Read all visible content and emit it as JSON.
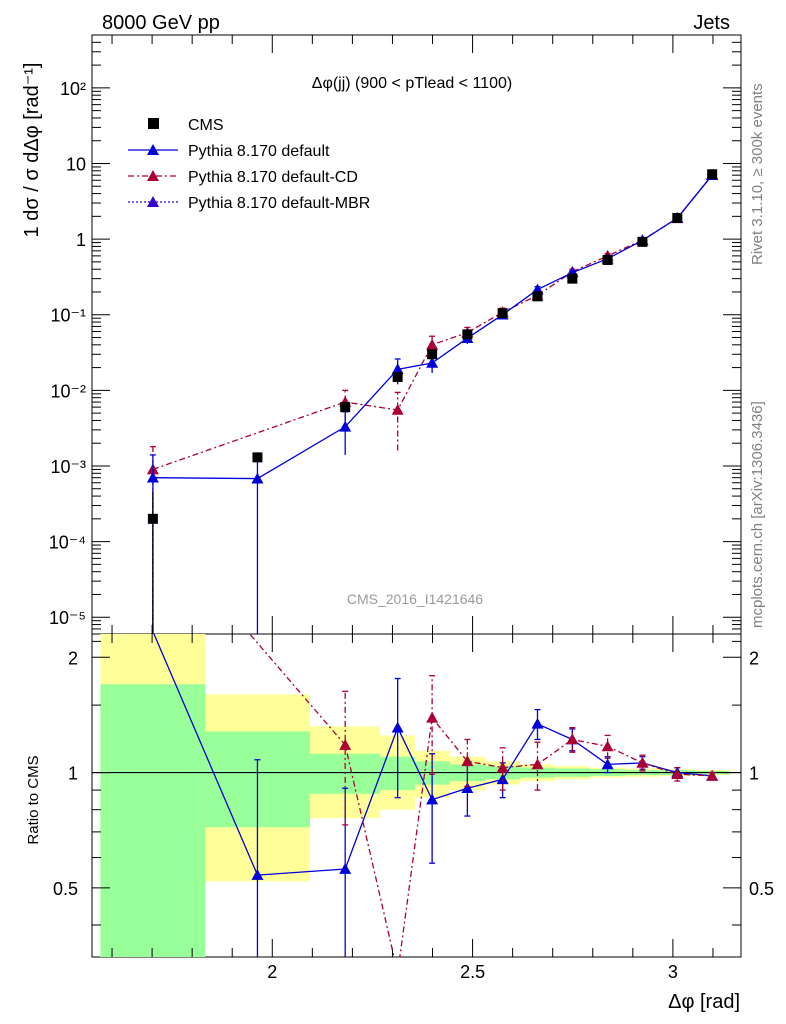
{
  "header": {
    "left": "8000 GeV pp",
    "right": "Jets"
  },
  "side": {
    "rivet": "Rivet 3.1.10, ≥ 300k events",
    "mcplots": "mcplots.cern.ch [arXiv:1306.3436]"
  },
  "watermark": "CMS_2016_I1421646",
  "colors": {
    "cms": "#000000",
    "default": "#0000dd",
    "cd": "#aa0033",
    "mbr": "#3300cc",
    "band_inner": "#99ff99",
    "band_outer": "#ffff99"
  },
  "chart_data": [
    {
      "type": "scatter",
      "title": "Δφ(jj) (900 < pTlead < 1100)",
      "ylabel": "1 dσ / σ dΔφ [rad⁻¹]",
      "xlabel": "",
      "xlim": [
        1.55,
        3.17
      ],
      "ylim": [
        6e-06,
        500
      ],
      "yscale": "log",
      "ytick_labels": [
        "10⁻⁵",
        "10⁻⁴",
        "10⁻³",
        "10⁻²",
        "10⁻¹",
        "1",
        "10",
        "10²"
      ],
      "legend_position": "top-left",
      "series": [
        {
          "name": "CMS",
          "style": "marker",
          "x": [
            1.702,
            1.963,
            2.182,
            2.313,
            2.399,
            2.487,
            2.575,
            2.662,
            2.749,
            2.837,
            2.924,
            3.011,
            3.098
          ],
          "y": [
            0.0002,
            0.0013,
            0.006,
            0.015,
            0.03,
            0.055,
            0.105,
            0.175,
            0.3,
            0.53,
            0.92,
            1.9,
            7.2
          ],
          "yerr": [
            0.00025,
            0.00015,
            0.0008,
            0.002,
            0.004,
            0.006,
            0.008,
            0.012,
            0.02,
            0.03,
            0.05,
            0.09,
            0.3
          ]
        },
        {
          "name": "Pythia 8.170 default",
          "style": "solid",
          "x": [
            1.702,
            1.963,
            2.182,
            2.313,
            2.399,
            2.487,
            2.575,
            2.662,
            2.749,
            2.837,
            2.924,
            3.011,
            3.098
          ],
          "y": [
            0.0007,
            0.00068,
            0.0033,
            0.019,
            0.023,
            0.049,
            0.1,
            0.215,
            0.36,
            0.55,
            0.96,
            1.9,
            7.0
          ],
          "yerr": [
            0.0007,
            0.00068,
            0.0019,
            0.007,
            0.006,
            0.008,
            0.012,
            0.02,
            0.02,
            0.03,
            0.04,
            0.06,
            0.1
          ]
        },
        {
          "name": "Pythia 8.170 default-CD",
          "style": "dashdot",
          "x": [
            1.702,
            1.963,
            2.182,
            2.313,
            2.399,
            2.487,
            2.575,
            2.662,
            2.749,
            2.837,
            2.924,
            3.011,
            3.098
          ],
          "y": [
            0.0009,
            null,
            0.007,
            0.0055,
            0.04,
            0.058,
            0.108,
            0.18,
            0.37,
            0.6,
            0.97,
            1.88,
            7.1
          ],
          "yerr": [
            0.0009,
            null,
            0.003,
            0.0039,
            0.012,
            0.01,
            0.014,
            0.02,
            0.03,
            0.04,
            0.05,
            0.07,
            0.1
          ]
        },
        {
          "name": "Pythia 8.170 default-MBR",
          "style": "dotted",
          "x": [
            3.011,
            3.098
          ],
          "y": [
            1.9,
            7.05
          ],
          "yerr": [
            0.06,
            0.1
          ]
        }
      ]
    },
    {
      "type": "line",
      "ylabel": "Ratio to CMS",
      "xlabel": "Δφ [rad]",
      "xlim": [
        1.55,
        3.17
      ],
      "ylim": [
        0.33,
        2.3
      ],
      "x_tick_labels": [
        "2",
        "2.5",
        "3"
      ],
      "y_tick_labels": [
        "0.5",
        "1",
        "2"
      ],
      "reference_line": 1,
      "bands": {
        "edges": [
          1.571,
          1.833,
          2.094,
          2.269,
          2.356,
          2.443,
          2.531,
          2.618,
          2.705,
          2.793,
          2.88,
          2.967,
          3.054,
          3.142
        ],
        "inner_low": [
          0.3,
          0.72,
          0.88,
          0.9,
          0.93,
          0.95,
          0.96,
          0.97,
          0.975,
          0.98,
          0.985,
          0.985,
          0.99
        ],
        "inner_high": [
          1.7,
          1.28,
          1.12,
          1.1,
          1.07,
          1.05,
          1.04,
          1.03,
          1.025,
          1.02,
          1.015,
          1.015,
          1.01
        ],
        "outer_low": [
          0.3,
          0.52,
          0.76,
          0.8,
          0.86,
          0.9,
          0.93,
          0.95,
          0.96,
          0.97,
          0.975,
          0.98,
          0.985
        ],
        "outer_high": [
          2.3,
          1.6,
          1.32,
          1.25,
          1.14,
          1.1,
          1.07,
          1.05,
          1.04,
          1.03,
          1.025,
          1.02,
          1.015
        ]
      },
      "series": [
        {
          "name": "Pythia 8.170 default",
          "x": [
            1.63,
            1.963,
            2.182,
            2.313,
            2.399,
            2.487,
            2.575,
            2.662,
            2.749,
            2.837,
            2.924,
            3.011,
            3.098
          ],
          "y": [
            3.5,
            0.54,
            0.56,
            1.31,
            0.85,
            0.91,
            0.96,
            1.34,
            1.22,
            1.05,
            1.06,
            1.0,
            0.98
          ],
          "yerr": [
            null,
            0.54,
            0.35,
            0.45,
            0.27,
            0.14,
            0.1,
            0.12,
            0.08,
            0.05,
            0.04,
            0.03,
            0.02
          ],
          "markers": [
            false,
            true,
            true,
            true,
            true,
            true,
            true,
            true,
            true,
            true,
            true,
            true,
            true
          ]
        },
        {
          "name": "Pythia 8.170 default-CD",
          "x": [
            1.9,
            2.182,
            2.313,
            2.399,
            2.487,
            2.575,
            2.662,
            2.749,
            2.837,
            2.924,
            3.011,
            3.098
          ],
          "y": [
            2.6,
            1.18,
            0.3,
            1.39,
            1.07,
            1.03,
            1.05,
            1.22,
            1.17,
            1.06,
            0.99,
            0.98
          ],
          "yerr": [
            null,
            0.45,
            null,
            0.4,
            0.15,
            0.13,
            0.15,
            0.09,
            0.08,
            0.05,
            0.04,
            0.02
          ],
          "markers": [
            false,
            true,
            false,
            true,
            true,
            true,
            true,
            true,
            true,
            true,
            true,
            true
          ]
        }
      ]
    }
  ]
}
